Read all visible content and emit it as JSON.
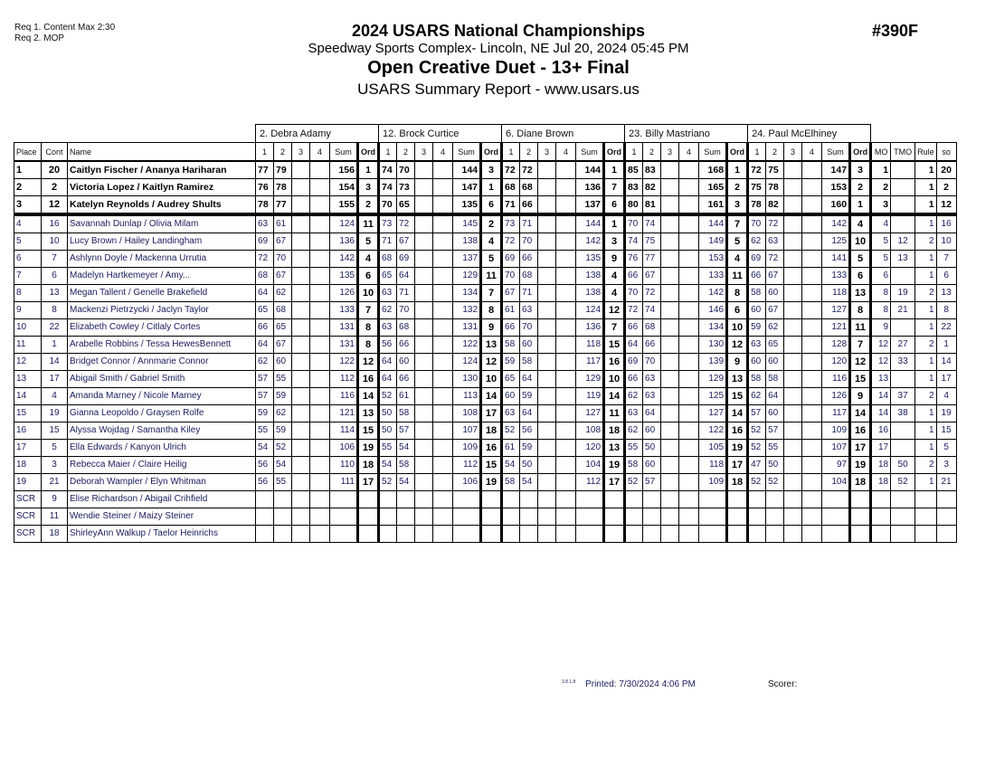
{
  "header": {
    "req1": "Req  1.  Content Max 2:30",
    "req2": "Req  2.  MOP",
    "title": "2024 USARS National Championships",
    "venue": "Speedway Sports Complex- Lincoln, NE  Jul 20, 2024  05:45 PM",
    "event": "Open Creative Duet - 13+ Final",
    "report": "USARS Summary Report - www.usars.us",
    "event_number": "#390F"
  },
  "judges": [
    "2.  Debra Adamy",
    "12.  Brock Curtice",
    "6.  Diane Brown",
    "23.  Billy Mastriano",
    "24.  Paul McElhiney"
  ],
  "columns": {
    "place": "Place",
    "cont": "Cont",
    "name": "Name",
    "judge_cols": [
      "1",
      "2",
      "3",
      "4",
      "Sum",
      "Ord"
    ],
    "mo": "MO",
    "tmo": "TMO",
    "rule": "Rule",
    "so": "so"
  },
  "rows": [
    {
      "place": "1",
      "cont": "20",
      "name": "Caitlyn Fischer / Ananya Hariharan",
      "j": [
        [
          "77",
          "79",
          "",
          "",
          "156",
          "1"
        ],
        [
          "74",
          "70",
          "",
          "",
          "144",
          "3"
        ],
        [
          "72",
          "72",
          "",
          "",
          "144",
          "1"
        ],
        [
          "85",
          "83",
          "",
          "",
          "168",
          "1"
        ],
        [
          "72",
          "75",
          "",
          "",
          "147",
          "3"
        ]
      ],
      "mo": "1",
      "tmo": "",
      "rule": "1",
      "so": "20"
    },
    {
      "place": "2",
      "cont": "2",
      "name": "Victoria Lopez / Kaitlyn Ramirez",
      "j": [
        [
          "76",
          "78",
          "",
          "",
          "154",
          "3"
        ],
        [
          "74",
          "73",
          "",
          "",
          "147",
          "1"
        ],
        [
          "68",
          "68",
          "",
          "",
          "136",
          "7"
        ],
        [
          "83",
          "82",
          "",
          "",
          "165",
          "2"
        ],
        [
          "75",
          "78",
          "",
          "",
          "153",
          "2"
        ]
      ],
      "mo": "2",
      "tmo": "",
      "rule": "1",
      "so": "2"
    },
    {
      "place": "3",
      "cont": "12",
      "name": "Katelyn Reynolds / Audrey Shults",
      "j": [
        [
          "78",
          "77",
          "",
          "",
          "155",
          "2"
        ],
        [
          "70",
          "65",
          "",
          "",
          "135",
          "6"
        ],
        [
          "71",
          "66",
          "",
          "",
          "137",
          "6"
        ],
        [
          "80",
          "81",
          "",
          "",
          "161",
          "3"
        ],
        [
          "78",
          "82",
          "",
          "",
          "160",
          "1"
        ]
      ],
      "mo": "3",
      "tmo": "",
      "rule": "1",
      "so": "12"
    },
    {
      "place": "4",
      "cont": "16",
      "name": "Savannah Dunlap / Olivia Milam",
      "j": [
        [
          "63",
          "61",
          "",
          "",
          "124",
          "11"
        ],
        [
          "73",
          "72",
          "",
          "",
          "145",
          "2"
        ],
        [
          "73",
          "71",
          "",
          "",
          "144",
          "1"
        ],
        [
          "70",
          "74",
          "",
          "",
          "144",
          "7"
        ],
        [
          "70",
          "72",
          "",
          "",
          "142",
          "4"
        ]
      ],
      "mo": "4",
      "tmo": "",
      "rule": "1",
      "so": "16"
    },
    {
      "place": "5",
      "cont": "10",
      "name": "Lucy Brown / Hailey Landingham",
      "j": [
        [
          "69",
          "67",
          "",
          "",
          "136",
          "5"
        ],
        [
          "71",
          "67",
          "",
          "",
          "138",
          "4"
        ],
        [
          "72",
          "70",
          "",
          "",
          "142",
          "3"
        ],
        [
          "74",
          "75",
          "",
          "",
          "149",
          "5"
        ],
        [
          "62",
          "63",
          "",
          "",
          "125",
          "10"
        ]
      ],
      "mo": "5",
      "tmo": "12",
      "rule": "2",
      "so": "10"
    },
    {
      "place": "6",
      "cont": "7",
      "name": "Ashlynn Doyle / Mackenna Urrutia",
      "j": [
        [
          "72",
          "70",
          "",
          "",
          "142",
          "4"
        ],
        [
          "68",
          "69",
          "",
          "",
          "137",
          "5"
        ],
        [
          "69",
          "66",
          "",
          "",
          "135",
          "9"
        ],
        [
          "76",
          "77",
          "",
          "",
          "153",
          "4"
        ],
        [
          "69",
          "72",
          "",
          "",
          "141",
          "5"
        ]
      ],
      "mo": "5",
      "tmo": "13",
      "rule": "1",
      "so": "7"
    },
    {
      "place": "7",
      "cont": "6",
      "name": "Madelyn Hartkemeyer / Amy...",
      "j": [
        [
          "68",
          "67",
          "",
          "",
          "135",
          "6"
        ],
        [
          "65",
          "64",
          "",
          "",
          "129",
          "11"
        ],
        [
          "70",
          "68",
          "",
          "",
          "138",
          "4"
        ],
        [
          "66",
          "67",
          "",
          "",
          "133",
          "11"
        ],
        [
          "66",
          "67",
          "",
          "",
          "133",
          "6"
        ]
      ],
      "mo": "6",
      "tmo": "",
      "rule": "1",
      "so": "6"
    },
    {
      "place": "8",
      "cont": "13",
      "name": "Megan Tallent / Genelle Brakefield",
      "j": [
        [
          "64",
          "62",
          "",
          "",
          "126",
          "10"
        ],
        [
          "63",
          "71",
          "",
          "",
          "134",
          "7"
        ],
        [
          "67",
          "71",
          "",
          "",
          "138",
          "4"
        ],
        [
          "70",
          "72",
          "",
          "",
          "142",
          "8"
        ],
        [
          "58",
          "60",
          "",
          "",
          "118",
          "13"
        ]
      ],
      "mo": "8",
      "tmo": "19",
      "rule": "2",
      "so": "13"
    },
    {
      "place": "9",
      "cont": "8",
      "name": "Mackenzi Pietrzycki / Jaclyn Taylor",
      "j": [
        [
          "65",
          "68",
          "",
          "",
          "133",
          "7"
        ],
        [
          "62",
          "70",
          "",
          "",
          "132",
          "8"
        ],
        [
          "61",
          "63",
          "",
          "",
          "124",
          "12"
        ],
        [
          "72",
          "74",
          "",
          "",
          "146",
          "6"
        ],
        [
          "60",
          "67",
          "",
          "",
          "127",
          "8"
        ]
      ],
      "mo": "8",
      "tmo": "21",
      "rule": "1",
      "so": "8"
    },
    {
      "place": "10",
      "cont": "22",
      "name": "Elizabeth Cowley / Citlaly Cortes",
      "j": [
        [
          "66",
          "65",
          "",
          "",
          "131",
          "8"
        ],
        [
          "63",
          "68",
          "",
          "",
          "131",
          "9"
        ],
        [
          "66",
          "70",
          "",
          "",
          "136",
          "7"
        ],
        [
          "66",
          "68",
          "",
          "",
          "134",
          "10"
        ],
        [
          "59",
          "62",
          "",
          "",
          "121",
          "11"
        ]
      ],
      "mo": "9",
      "tmo": "",
      "rule": "1",
      "so": "22"
    },
    {
      "place": "11",
      "cont": "1",
      "name": "Arabelle Robbins / Tessa HewesBennett",
      "j": [
        [
          "64",
          "67",
          "",
          "",
          "131",
          "8"
        ],
        [
          "56",
          "66",
          "",
          "",
          "122",
          "13"
        ],
        [
          "58",
          "60",
          "",
          "",
          "118",
          "15"
        ],
        [
          "64",
          "66",
          "",
          "",
          "130",
          "12"
        ],
        [
          "63",
          "65",
          "",
          "",
          "128",
          "7"
        ]
      ],
      "mo": "12",
      "tmo": "27",
      "rule": "2",
      "so": "1"
    },
    {
      "place": "12",
      "cont": "14",
      "name": "Bridget Connor / Annmarie Connor",
      "j": [
        [
          "62",
          "60",
          "",
          "",
          "122",
          "12"
        ],
        [
          "64",
          "60",
          "",
          "",
          "124",
          "12"
        ],
        [
          "59",
          "58",
          "",
          "",
          "117",
          "16"
        ],
        [
          "69",
          "70",
          "",
          "",
          "139",
          "9"
        ],
        [
          "60",
          "60",
          "",
          "",
          "120",
          "12"
        ]
      ],
      "mo": "12",
      "tmo": "33",
      "rule": "1",
      "so": "14"
    },
    {
      "place": "13",
      "cont": "17",
      "name": "Abigail Smith / Gabriel Smith",
      "j": [
        [
          "57",
          "55",
          "",
          "",
          "112",
          "16"
        ],
        [
          "64",
          "66",
          "",
          "",
          "130",
          "10"
        ],
        [
          "65",
          "64",
          "",
          "",
          "129",
          "10"
        ],
        [
          "66",
          "63",
          "",
          "",
          "129",
          "13"
        ],
        [
          "58",
          "58",
          "",
          "",
          "116",
          "15"
        ]
      ],
      "mo": "13",
      "tmo": "",
      "rule": "1",
      "so": "17"
    },
    {
      "place": "14",
      "cont": "4",
      "name": "Amanda Marney / Nicole Marney",
      "j": [
        [
          "57",
          "59",
          "",
          "",
          "116",
          "14"
        ],
        [
          "52",
          "61",
          "",
          "",
          "113",
          "14"
        ],
        [
          "60",
          "59",
          "",
          "",
          "119",
          "14"
        ],
        [
          "62",
          "63",
          "",
          "",
          "125",
          "15"
        ],
        [
          "62",
          "64",
          "",
          "",
          "126",
          "9"
        ]
      ],
      "mo": "14",
      "tmo": "37",
      "rule": "2",
      "so": "4"
    },
    {
      "place": "15",
      "cont": "19",
      "name": "Gianna Leopoldo / Graysen Rolfe",
      "j": [
        [
          "59",
          "62",
          "",
          "",
          "121",
          "13"
        ],
        [
          "50",
          "58",
          "",
          "",
          "108",
          "17"
        ],
        [
          "63",
          "64",
          "",
          "",
          "127",
          "11"
        ],
        [
          "63",
          "64",
          "",
          "",
          "127",
          "14"
        ],
        [
          "57",
          "60",
          "",
          "",
          "117",
          "14"
        ]
      ],
      "mo": "14",
      "tmo": "38",
      "rule": "1",
      "so": "19"
    },
    {
      "place": "16",
      "cont": "15",
      "name": "Alyssa Wojdag / Samantha Kiley",
      "j": [
        [
          "55",
          "59",
          "",
          "",
          "114",
          "15"
        ],
        [
          "50",
          "57",
          "",
          "",
          "107",
          "18"
        ],
        [
          "52",
          "56",
          "",
          "",
          "108",
          "18"
        ],
        [
          "62",
          "60",
          "",
          "",
          "122",
          "16"
        ],
        [
          "52",
          "57",
          "",
          "",
          "109",
          "16"
        ]
      ],
      "mo": "16",
      "tmo": "",
      "rule": "1",
      "so": "15"
    },
    {
      "place": "17",
      "cont": "5",
      "name": "Ella Edwards / Kanyon Ulrich",
      "j": [
        [
          "54",
          "52",
          "",
          "",
          "106",
          "19"
        ],
        [
          "55",
          "54",
          "",
          "",
          "109",
          "16"
        ],
        [
          "61",
          "59",
          "",
          "",
          "120",
          "13"
        ],
        [
          "55",
          "50",
          "",
          "",
          "105",
          "19"
        ],
        [
          "52",
          "55",
          "",
          "",
          "107",
          "17"
        ]
      ],
      "mo": "17",
      "tmo": "",
      "rule": "1",
      "so": "5"
    },
    {
      "place": "18",
      "cont": "3",
      "name": "Rebecca Maier / Claire Heilig",
      "j": [
        [
          "56",
          "54",
          "",
          "",
          "110",
          "18"
        ],
        [
          "54",
          "58",
          "",
          "",
          "112",
          "15"
        ],
        [
          "54",
          "50",
          "",
          "",
          "104",
          "19"
        ],
        [
          "58",
          "60",
          "",
          "",
          "118",
          "17"
        ],
        [
          "47",
          "50",
          "",
          "",
          "97",
          "19"
        ]
      ],
      "mo": "18",
      "tmo": "50",
      "rule": "2",
      "so": "3"
    },
    {
      "place": "19",
      "cont": "21",
      "name": "Deborah Wampler / Elyn Whitman",
      "j": [
        [
          "56",
          "55",
          "",
          "",
          "111",
          "17"
        ],
        [
          "52",
          "54",
          "",
          "",
          "106",
          "19"
        ],
        [
          "58",
          "54",
          "",
          "",
          "112",
          "17"
        ],
        [
          "52",
          "57",
          "",
          "",
          "109",
          "18"
        ],
        [
          "52",
          "52",
          "",
          "",
          "104",
          "18"
        ]
      ],
      "mo": "18",
      "tmo": "52",
      "rule": "1",
      "so": "21"
    },
    {
      "place": "SCR",
      "cont": "9",
      "name": "Elise Richardson / Abigail Crihfield",
      "j": [
        [
          "",
          "",
          "",
          "",
          "",
          ""
        ],
        [
          "",
          "",
          "",
          "",
          "",
          ""
        ],
        [
          "",
          "",
          "",
          "",
          "",
          ""
        ],
        [
          "",
          "",
          "",
          "",
          "",
          ""
        ],
        [
          "",
          "",
          "",
          "",
          "",
          ""
        ]
      ],
      "mo": "",
      "tmo": "",
      "rule": "",
      "so": ""
    },
    {
      "place": "SCR",
      "cont": "11",
      "name": "Wendie Steiner / Maizy Steiner",
      "j": [
        [
          "",
          "",
          "",
          "",
          "",
          ""
        ],
        [
          "",
          "",
          "",
          "",
          "",
          ""
        ],
        [
          "",
          "",
          "",
          "",
          "",
          ""
        ],
        [
          "",
          "",
          "",
          "",
          "",
          ""
        ],
        [
          "",
          "",
          "",
          "",
          "",
          ""
        ]
      ],
      "mo": "",
      "tmo": "",
      "rule": "",
      "so": ""
    },
    {
      "place": "SCR",
      "cont": "18",
      "name": "ShirleyAnn Walkup / Taelor Heinrichs",
      "j": [
        [
          "",
          "",
          "",
          "",
          "",
          ""
        ],
        [
          "",
          "",
          "",
          "",
          "",
          ""
        ],
        [
          "",
          "",
          "",
          "",
          "",
          ""
        ],
        [
          "",
          "",
          "",
          "",
          "",
          ""
        ],
        [
          "",
          "",
          "",
          "",
          "",
          ""
        ]
      ],
      "mo": "",
      "tmo": "",
      "rule": "",
      "so": ""
    }
  ],
  "footer": {
    "version": "3.8.1.8",
    "printed": "Printed:  7/30/2024  4:06 PM",
    "scorer_label": "Scorer:"
  }
}
